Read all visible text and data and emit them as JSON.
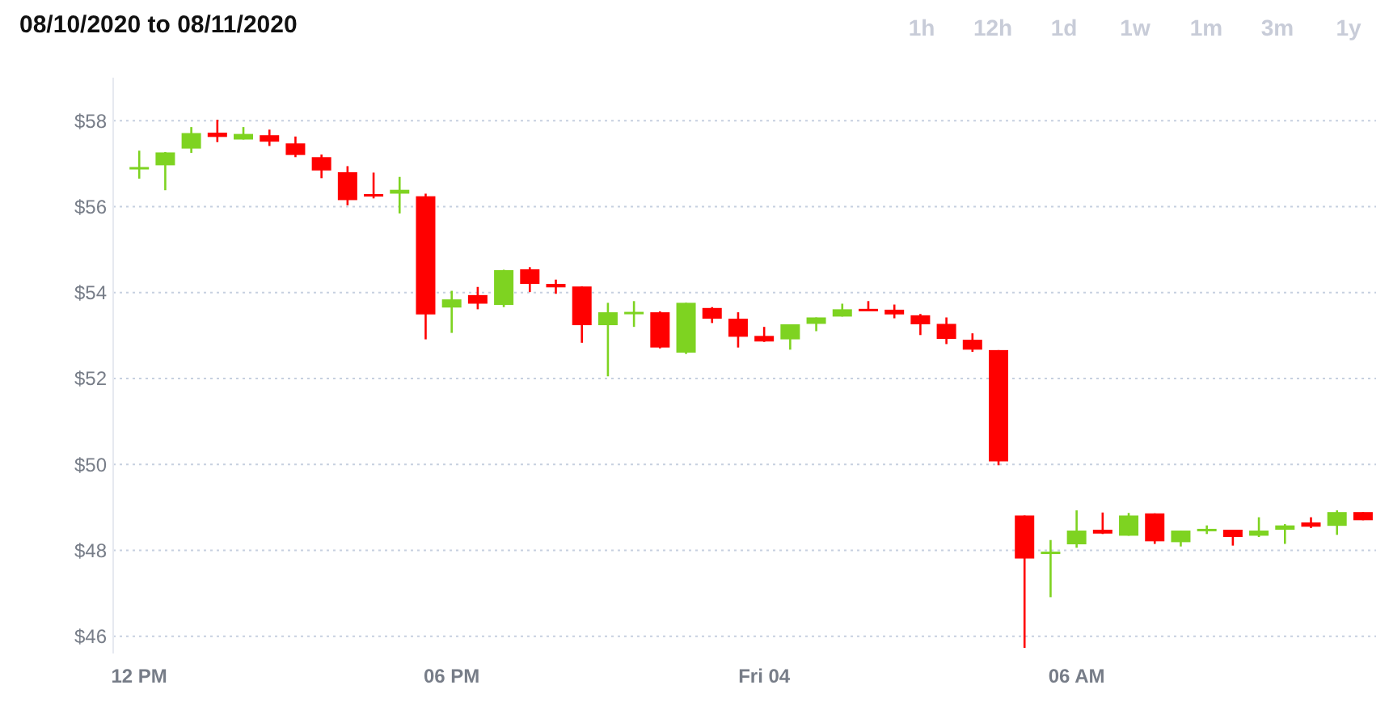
{
  "chart_data": {
    "type": "candlestick",
    "title": "08/10/2020 to 08/11/2020",
    "annotations": [
      "1h",
      "12h",
      "1d",
      "1w",
      "1m",
      "3m",
      "1y"
    ],
    "x": [
      "2020-08-10T12:00",
      "2020-08-10T12:30",
      "2020-08-10T13:00",
      "2020-08-10T13:30",
      "2020-08-10T14:00",
      "2020-08-10T14:30",
      "2020-08-10T15:00",
      "2020-08-10T15:30",
      "2020-08-10T16:00",
      "2020-08-10T16:30",
      "2020-08-10T17:00",
      "2020-08-10T17:30",
      "2020-08-10T18:00",
      "2020-08-10T18:30",
      "2020-08-10T19:00",
      "2020-08-10T19:30",
      "2020-08-10T20:00",
      "2020-08-10T20:30",
      "2020-08-10T21:00",
      "2020-08-10T21:30",
      "2020-08-10T22:00",
      "2020-08-10T22:30",
      "2020-08-10T23:00",
      "2020-08-10T23:30",
      "2020-08-11T00:00",
      "2020-08-11T00:30",
      "2020-08-11T01:00",
      "2020-08-11T01:30",
      "2020-08-11T02:00",
      "2020-08-11T02:30",
      "2020-08-11T03:00",
      "2020-08-11T03:30",
      "2020-08-11T04:00",
      "2020-08-11T04:30",
      "2020-08-11T05:00",
      "2020-08-11T05:30",
      "2020-08-11T06:00",
      "2020-08-11T06:30",
      "2020-08-11T07:00",
      "2020-08-11T07:30",
      "2020-08-11T08:00",
      "2020-08-11T08:30",
      "2020-08-11T09:00",
      "2020-08-11T09:30",
      "2020-08-11T10:00",
      "2020-08-11T10:30",
      "2020-08-11T11:00",
      "2020-08-11T11:30"
    ],
    "ohlc": [
      [
        56.88,
        57.3,
        56.65,
        56.92
      ],
      [
        56.96,
        57.27,
        56.38,
        57.26
      ],
      [
        57.35,
        57.85,
        57.25,
        57.71
      ],
      [
        57.72,
        58.02,
        57.5,
        57.62
      ],
      [
        57.56,
        57.85,
        57.56,
        57.69
      ],
      [
        57.66,
        57.79,
        57.41,
        57.51
      ],
      [
        57.47,
        57.63,
        57.15,
        57.2
      ],
      [
        57.15,
        57.21,
        56.66,
        56.84
      ],
      [
        56.8,
        56.94,
        56.03,
        56.15
      ],
      [
        56.29,
        56.79,
        56.19,
        56.26
      ],
      [
        56.3,
        56.69,
        55.84,
        56.39
      ],
      [
        56.24,
        56.3,
        52.91,
        53.49
      ],
      [
        53.65,
        54.04,
        53.06,
        53.84
      ],
      [
        53.94,
        54.13,
        53.61,
        53.74
      ],
      [
        53.71,
        54.53,
        53.66,
        54.52
      ],
      [
        54.54,
        54.59,
        54.01,
        54.2
      ],
      [
        54.2,
        54.3,
        53.97,
        54.12
      ],
      [
        54.14,
        54.14,
        52.83,
        53.24
      ],
      [
        53.24,
        53.76,
        52.05,
        53.54
      ],
      [
        53.54,
        53.8,
        53.2,
        53.55
      ],
      [
        53.54,
        53.56,
        52.7,
        52.72
      ],
      [
        52.6,
        53.76,
        52.57,
        53.76
      ],
      [
        53.64,
        53.66,
        53.29,
        53.39
      ],
      [
        53.39,
        53.54,
        52.72,
        52.97
      ],
      [
        52.99,
        53.2,
        52.85,
        52.86
      ],
      [
        52.91,
        53.26,
        52.67,
        53.26
      ],
      [
        53.27,
        53.42,
        53.1,
        53.42
      ],
      [
        53.44,
        53.74,
        53.44,
        53.61
      ],
      [
        53.62,
        53.8,
        53.6,
        53.6
      ],
      [
        53.6,
        53.72,
        53.4,
        53.49
      ],
      [
        53.47,
        53.5,
        53.01,
        53.26
      ],
      [
        53.27,
        53.42,
        52.8,
        52.92
      ],
      [
        52.9,
        53.05,
        52.62,
        52.67
      ],
      [
        52.66,
        52.66,
        49.98,
        50.07
      ],
      [
        48.81,
        48.81,
        45.73,
        47.81
      ],
      [
        47.96,
        48.24,
        46.91,
        47.97
      ],
      [
        48.14,
        48.93,
        48.06,
        48.46
      ],
      [
        48.48,
        48.88,
        48.38,
        48.39
      ],
      [
        48.34,
        48.87,
        48.34,
        48.81
      ],
      [
        48.86,
        48.86,
        48.15,
        48.21
      ],
      [
        48.19,
        48.46,
        48.09,
        48.46
      ],
      [
        48.49,
        48.58,
        48.38,
        48.5
      ],
      [
        48.48,
        48.48,
        48.11,
        48.31
      ],
      [
        48.34,
        48.77,
        48.31,
        48.46
      ],
      [
        48.48,
        48.61,
        48.15,
        48.58
      ],
      [
        48.65,
        48.77,
        48.52,
        48.55
      ],
      [
        48.57,
        48.93,
        48.36,
        48.89
      ],
      [
        48.89,
        48.89,
        48.7,
        48.7
      ]
    ],
    "colors": [
      "#7ed321",
      "#7ed321",
      "#7ed321",
      "#ff0000",
      "#7ed321",
      "#ff0000",
      "#ff0000",
      "#ff0000",
      "#ff0000",
      "#ff0000",
      "#7ed321",
      "#ff0000",
      "#7ed321",
      "#ff0000",
      "#7ed321",
      "#ff0000",
      "#ff0000",
      "#ff0000",
      "#7ed321",
      "#7ed321",
      "#ff0000",
      "#7ed321",
      "#ff0000",
      "#ff0000",
      "#ff0000",
      "#7ed321",
      "#7ed321",
      "#7ed321",
      "#ff0000",
      "#ff0000",
      "#ff0000",
      "#ff0000",
      "#ff0000",
      "#ff0000",
      "#ff0000",
      "#7ed321",
      "#7ed321",
      "#ff0000",
      "#7ed321",
      "#ff0000",
      "#7ed321",
      "#7ed321",
      "#ff0000",
      "#7ed321",
      "#7ed321",
      "#ff0000",
      "#7ed321",
      "#ff0000"
    ],
    "xlim": [
      "2020-08-10T11:30",
      "2020-08-11T11:45"
    ],
    "xticks": [
      {
        "value": "2020-08-10T12:00",
        "label": "12 PM"
      },
      {
        "value": "2020-08-10T18:00",
        "label": "06 PM"
      },
      {
        "value": "2020-08-11T00:00",
        "label": "Fri 04"
      },
      {
        "value": "2020-08-11T06:00",
        "label": "06 AM"
      }
    ],
    "ylim": [
      45.6,
      59
    ],
    "yticks": [
      {
        "value": 46,
        "label": "$46"
      },
      {
        "value": 48,
        "label": "$48"
      },
      {
        "value": 50,
        "label": "$50"
      },
      {
        "value": 52,
        "label": "$52"
      },
      {
        "value": 54,
        "label": "$54"
      },
      {
        "value": 56,
        "label": "$56"
      },
      {
        "value": 58,
        "label": "$58"
      }
    ],
    "grid": "y"
  }
}
